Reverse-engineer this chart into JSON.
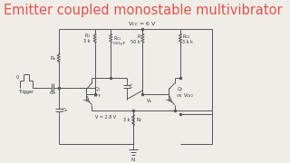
{
  "title": "Emitter coupled monostable multivibrator",
  "title_color": "#e8524a",
  "title_fontsize": 10.5,
  "bg_color": "#f0ede8",
  "circuit_color": "#555555",
  "label_color": "#333333",
  "vcc_label": "V$_{CC}$ = 6 V",
  "r1_label": "R$_1$",
  "r1_val": "3 k",
  "rc1_label": "R$_{C1}$",
  "rc1_val": "0.01μF",
  "r_label": "R",
  "r_val": "50 k",
  "rc2_label": "R$_{C2}$",
  "q1_label": "Q$_1$",
  "q1_state": "OFF",
  "q2_label": "Q$_2$",
  "q2_state": "ON",
  "re_label": "R$_E$",
  "re_val": "3 k",
  "v_label": "V = 2.8 V",
  "trigger_label": "Trigger",
  "cin_label": "C$_{in}$",
  "cb_label": "C$_b$",
  "rb_label": "R$_b$",
  "vb_label": "V$_b$",
  "vcn2_label": "V$_{CN2}$",
  "n_label": "N",
  "rc2_val": "3 k",
  "c_label": "C"
}
